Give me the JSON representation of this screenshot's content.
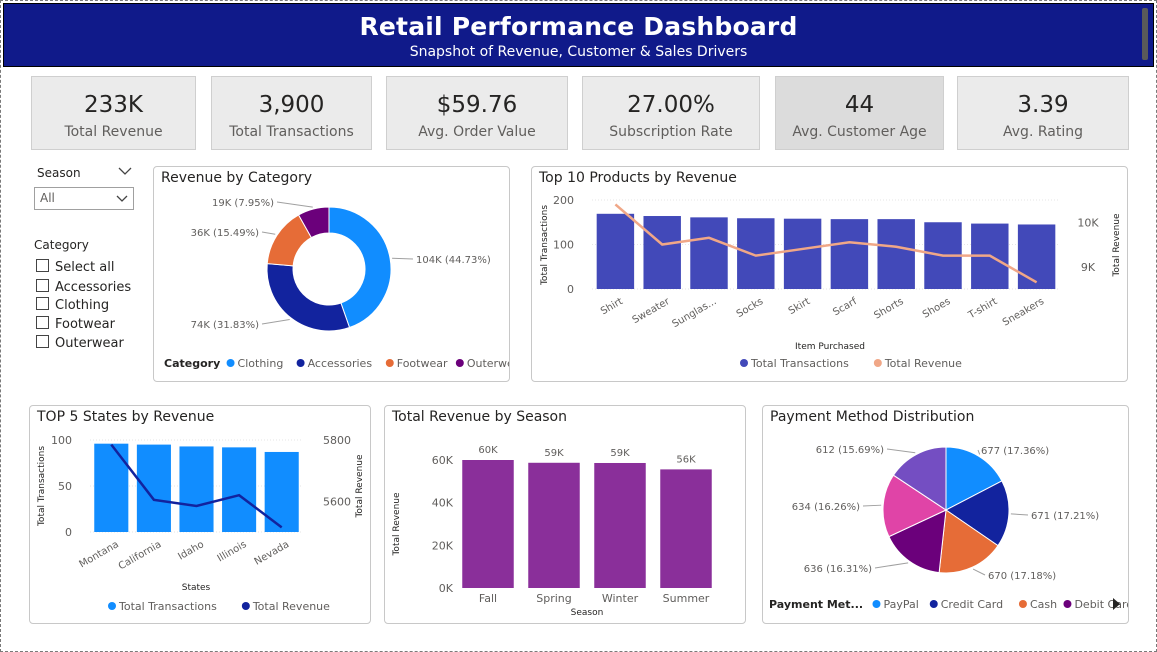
{
  "header": {
    "title": "Retail Performance Dashboard",
    "subtitle": "Snapshot of Revenue, Customer & Sales Drivers"
  },
  "kpis": [
    {
      "value": "233K",
      "label": "Total Revenue"
    },
    {
      "value": "3,900",
      "label": "Total Transactions"
    },
    {
      "value": "$59.76",
      "label": "Avg. Order Value"
    },
    {
      "value": "27.00%",
      "label": "Subscription Rate"
    },
    {
      "value": "44",
      "label": "Avg. Customer Age"
    },
    {
      "value": "3.39",
      "label": "Avg. Rating"
    }
  ],
  "slicers": {
    "season": {
      "label": "Season",
      "selected": "All"
    },
    "category": {
      "label": "Category",
      "options": [
        "Select all",
        "Accessories",
        "Clothing",
        "Footwear",
        "Outerwear"
      ]
    }
  },
  "colors": {
    "header_bg": "#101a8a",
    "clothing": "#118dff",
    "accessories": "#12239e",
    "footwear": "#e66c37",
    "outerwear": "#6b007b",
    "bar_products": "#4249b9",
    "line_products": "#f0a787",
    "bar_states": "#118dff",
    "line_states": "#12239e",
    "season_bar": "#8a2f9a",
    "paypal": "#118dff",
    "credit_card": "#12239e",
    "cash": "#e66c37",
    "debit_card": "#6b007b",
    "extra1": "#e044a7",
    "extra2": "#744ec2"
  },
  "chart_data": [
    {
      "id": "revenue_by_category",
      "type": "pie",
      "title": "Revenue by Category",
      "legend_title": "Category",
      "legend_position": "bottom",
      "slices": [
        {
          "name": "Clothing",
          "value": 104,
          "label": "104K (44.73%)"
        },
        {
          "name": "Accessories",
          "value": 74,
          "label": "74K (31.83%)"
        },
        {
          "name": "Footwear",
          "value": 36,
          "label": "36K (15.49%)"
        },
        {
          "name": "Outerwear",
          "value": 19,
          "label": "19K (7.95%)"
        }
      ]
    },
    {
      "id": "top10_products",
      "type": "bar",
      "title": "Top 10 Products by Revenue",
      "xlabel": "Item Purchased",
      "ylabel": "Total Transactions",
      "y2label": "Total Revenue",
      "ylim": [
        0,
        200
      ],
      "y2lim": [
        8500,
        10500
      ],
      "yticks": [
        "0",
        "100",
        "200"
      ],
      "y2ticks": [
        "9K",
        "10K"
      ],
      "categories": [
        "Shirt",
        "Sweater",
        "Sunglas...",
        "Socks",
        "Skirt",
        "Scarf",
        "Shorts",
        "Shoes",
        "T-shirt",
        "Sneakers"
      ],
      "series": [
        {
          "name": "Total Transactions",
          "values": [
            169,
            164,
            161,
            159,
            158,
            157,
            157,
            150,
            147,
            145
          ]
        },
        {
          "name": "Total Revenue",
          "values": [
            10400,
            9500,
            9650,
            9250,
            9400,
            9550,
            9450,
            9250,
            9250,
            8650
          ]
        }
      ],
      "legend_position": "bottom"
    },
    {
      "id": "top5_states",
      "type": "bar",
      "title": "TOP 5 States by Revenue",
      "xlabel": "States",
      "ylabel": "Total Transactions",
      "y2label": "Total Revenue",
      "ylim": [
        0,
        100
      ],
      "y2lim": [
        5500,
        5800
      ],
      "yticks": [
        "0",
        "50",
        "100"
      ],
      "y2ticks": [
        "5600",
        "5800"
      ],
      "categories": [
        "Montana",
        "California",
        "Idaho",
        "Illinois",
        "Nevada"
      ],
      "series": [
        {
          "name": "Total Transactions",
          "values": [
            96,
            95,
            93,
            92,
            87
          ]
        },
        {
          "name": "Total Revenue",
          "values": [
            5785,
            5605,
            5585,
            5620,
            5515
          ]
        }
      ],
      "legend_position": "bottom"
    },
    {
      "id": "revenue_by_season",
      "type": "bar",
      "title": "Total Revenue by Season",
      "xlabel": "Season",
      "ylabel": "Total Revenue",
      "ylim": [
        0,
        60000
      ],
      "yticks": [
        "0K",
        "20K",
        "40K",
        "60K"
      ],
      "categories": [
        "Fall",
        "Spring",
        "Winter",
        "Summer"
      ],
      "values": [
        60000,
        58700,
        58600,
        55600
      ],
      "data_labels": [
        "60K",
        "59K",
        "59K",
        "56K"
      ]
    },
    {
      "id": "payment_methods",
      "type": "pie",
      "title": "Payment Method Distribution",
      "legend_title": "Payment Met...",
      "legend_position": "bottom",
      "legend_items": [
        "PayPal",
        "Credit Card",
        "Cash",
        "Debit Card"
      ],
      "slices": [
        {
          "value": 677,
          "label": "677 (17.36%)"
        },
        {
          "value": 671,
          "label": "671 (17.21%)"
        },
        {
          "value": 670,
          "label": "670 (17.18%)"
        },
        {
          "value": 636,
          "label": "636 (16.31%)"
        },
        {
          "value": 634,
          "label": "634 (16.26%)"
        },
        {
          "value": 612,
          "label": "612 (15.69%)"
        }
      ]
    }
  ]
}
